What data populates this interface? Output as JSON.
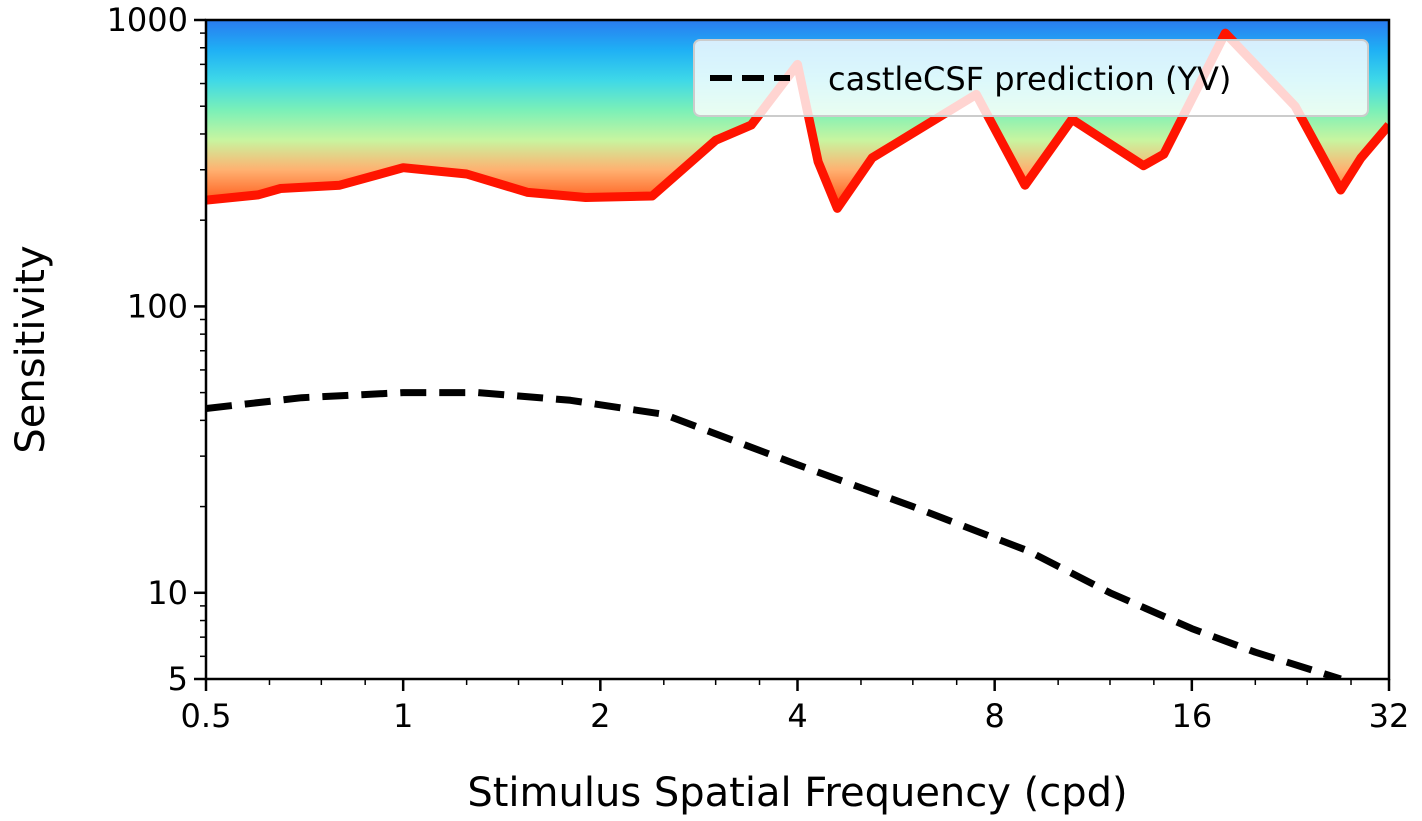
{
  "chart_data": {
    "type": "line",
    "title": "",
    "xlabel": "Stimulus Spatial Frequency (cpd)",
    "ylabel": "Sensitivity",
    "x_scale": "log2",
    "y_scale": "log10",
    "xlim": [
      0.5,
      32
    ],
    "ylim": [
      5,
      1000
    ],
    "x_ticks": [
      0.5,
      1,
      2,
      4,
      8,
      16,
      32
    ],
    "x_tick_labels": [
      "0.5",
      "1",
      "2",
      "4",
      "8",
      "16",
      "32"
    ],
    "y_ticks": [
      5,
      10,
      100,
      1000
    ],
    "y_tick_labels": [
      "5",
      "10",
      "100",
      "1000"
    ],
    "grid": false,
    "legend": {
      "position": "top-right",
      "entries": [
        {
          "label": "castleCSF prediction (YV)",
          "style": "dashed",
          "color": "#000000"
        }
      ]
    },
    "series": [
      {
        "name": "castleCSF prediction (YV)",
        "style": "dashed",
        "color": "#000000",
        "x": [
          0.5,
          0.7,
          1.0,
          1.3,
          1.8,
          2.5,
          4.0,
          6.0,
          9.0,
          12.0,
          16.0,
          20.0,
          27.0
        ],
        "y": [
          44,
          48,
          50,
          50,
          47,
          42,
          28,
          20,
          14,
          10,
          7.5,
          6.2,
          5.0
        ]
      }
    ],
    "contour_band": {
      "description": "filled contour region (jet colormap) near top of plot",
      "colormap": "jet",
      "lower_edge": {
        "x": [
          0.5,
          0.6,
          0.65,
          0.8,
          1.0,
          1.25,
          1.55,
          1.9,
          2.4,
          3.0,
          3.4,
          4.0,
          4.3,
          4.6,
          5.2,
          7.5,
          8.9,
          10.5,
          13.5,
          14.5,
          18.0,
          23.0,
          27.0,
          29.0,
          32.0
        ],
        "y": [
          235,
          245,
          258,
          265,
          305,
          290,
          250,
          240,
          243,
          380,
          430,
          700,
          320,
          220,
          330,
          550,
          265,
          450,
          310,
          340,
          900,
          500,
          255,
          330,
          430
        ]
      }
    }
  }
}
